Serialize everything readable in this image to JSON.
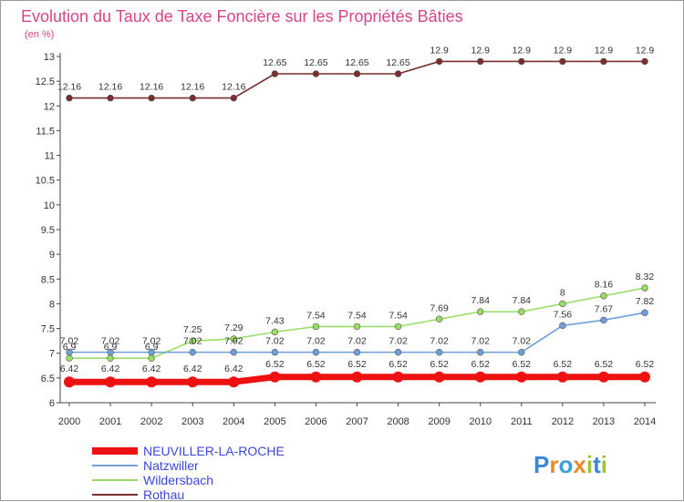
{
  "chart_data": {
    "type": "line",
    "title": "Evolution du Taux de Taxe Foncière sur les Propriétés Bâties",
    "ylabel": "(en %)",
    "xlabel": "",
    "ylim": [
      6,
      13
    ],
    "yticks": [
      6,
      6.5,
      7,
      7.5,
      8,
      8.5,
      9,
      9.5,
      10,
      10.5,
      11,
      11.5,
      12,
      12.5,
      13
    ],
    "x": [
      "2000",
      "2001",
      "2002",
      "2003",
      "2004",
      "2005",
      "2006",
      "2007",
      "2008",
      "2009",
      "2010",
      "2011",
      "2012",
      "2013",
      "2014"
    ],
    "grid": false,
    "legend": "bottom-left",
    "series": [
      {
        "name": "Rothau",
        "color": "#7a2e2e",
        "values": [
          12.16,
          12.16,
          12.16,
          12.16,
          12.16,
          12.65,
          12.65,
          12.65,
          12.65,
          12.9,
          12.9,
          12.9,
          12.9,
          12.9,
          12.9
        ],
        "labels": [
          "12.16",
          "12.16",
          "12.16",
          "12.16",
          "12.16",
          "12.65",
          "12.65",
          "12.65",
          "12.65",
          "12.9",
          "12.9",
          "12.9",
          "12.9",
          "12.9",
          "12.9"
        ]
      },
      {
        "name": "Wildersbach",
        "color": "#99dd66",
        "values": [
          6.9,
          6.9,
          6.9,
          7.25,
          7.29,
          7.43,
          7.54,
          7.54,
          7.54,
          7.69,
          7.84,
          7.84,
          8,
          8.16,
          8.32
        ],
        "labels": [
          "6.9",
          "6.9",
          "6.9",
          "7.25",
          "7.29",
          "7.43",
          "7.54",
          "7.54",
          "7.54",
          "7.69",
          "7.84",
          "7.84",
          "8",
          "8.16",
          "8.32"
        ]
      },
      {
        "name": "Natzwiller",
        "color": "#6f9fd8",
        "values": [
          7.02,
          7.02,
          7.02,
          7.02,
          7.02,
          7.02,
          7.02,
          7.02,
          7.02,
          7.02,
          7.02,
          7.02,
          7.56,
          7.67,
          7.82
        ],
        "labels": [
          "7.02",
          "7.02",
          "7.02",
          "7.02",
          "7.02",
          "7.02",
          "7.02",
          "7.02",
          "7.02",
          "7.02",
          "7.02",
          "7.02",
          "7.56",
          "7.67",
          "7.82"
        ]
      },
      {
        "name": "NEUVILLER-LA-ROCHE",
        "color": "#ee1111",
        "values": [
          6.42,
          6.42,
          6.42,
          6.42,
          6.42,
          6.52,
          6.52,
          6.52,
          6.52,
          6.52,
          6.52,
          6.52,
          6.52,
          6.52,
          6.52
        ],
        "labels": [
          "6.42",
          "6.42",
          "6.42",
          "6.42",
          "6.42",
          "6.52",
          "6.52",
          "6.52",
          "6.52",
          "6.52",
          "6.52",
          "6.52",
          "6.52",
          "6.52",
          "6.52"
        ]
      }
    ],
    "legend_entries": [
      {
        "name": "NEUVILLER-LA-ROCHE",
        "color": "#ee1111"
      },
      {
        "name": "Natzwiller",
        "color": "#6f9fd8"
      },
      {
        "name": "Wildersbach",
        "color": "#99dd66"
      },
      {
        "name": "Rothau",
        "color": "#7a2e2e"
      }
    ]
  },
  "brand": {
    "letters": [
      "P",
      "r",
      "o",
      "x",
      "i",
      "t",
      "i"
    ],
    "colors": [
      "#3a86d8",
      "#e8892a",
      "#3aa0e0",
      "#e8892a",
      "#9bc43a",
      "#3a86d8",
      "#9bc43a"
    ]
  },
  "legend_text_color": "#3a4ad8",
  "title_color": "#d6448a"
}
